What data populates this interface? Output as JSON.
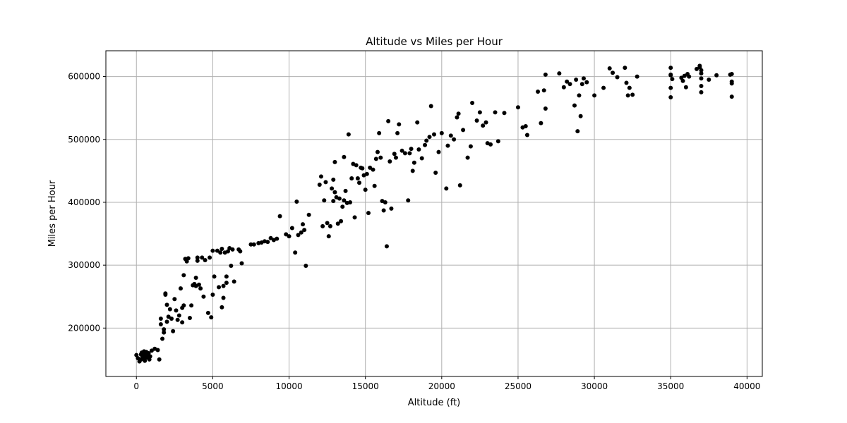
{
  "chart_data": {
    "type": "scatter",
    "title": "Altitude vs Miles per Hour",
    "xlabel": "Altitude (ft)",
    "ylabel": "Miles per Hour",
    "xlim": [
      -2000,
      41000
    ],
    "ylim": [
      123000,
      641000
    ],
    "x_ticks": [
      0,
      5000,
      10000,
      15000,
      20000,
      25000,
      30000,
      35000,
      40000
    ],
    "x_tick_labels": [
      "0",
      "5000",
      "10000",
      "15000",
      "20000",
      "25000",
      "30000",
      "35000",
      "40000"
    ],
    "y_ticks": [
      200000,
      300000,
      400000,
      500000,
      600000
    ],
    "y_tick_labels": [
      "200000",
      "300000",
      "400000",
      "500000",
      "600000"
    ],
    "grid": true,
    "marker_color": "#000000",
    "grid_color": "#b0b0b0",
    "points": [
      [
        0,
        157000
      ],
      [
        100,
        152000
      ],
      [
        200,
        147000
      ],
      [
        300,
        150000
      ],
      [
        300,
        158000
      ],
      [
        350,
        161000
      ],
      [
        400,
        155000
      ],
      [
        450,
        160000
      ],
      [
        500,
        152000
      ],
      [
        500,
        163000
      ],
      [
        550,
        148000
      ],
      [
        600,
        157000
      ],
      [
        650,
        162000
      ],
      [
        700,
        153000
      ],
      [
        750,
        158000
      ],
      [
        800,
        160000
      ],
      [
        850,
        150000
      ],
      [
        900,
        155000
      ],
      [
        1000,
        164000
      ],
      [
        1200,
        167000
      ],
      [
        1400,
        165000
      ],
      [
        1500,
        150000
      ],
      [
        1600,
        206000
      ],
      [
        1600,
        215000
      ],
      [
        1700,
        183000
      ],
      [
        1800,
        198000
      ],
      [
        1800,
        193000
      ],
      [
        1900,
        255000
      ],
      [
        1900,
        253000
      ],
      [
        2000,
        237000
      ],
      [
        2000,
        210000
      ],
      [
        2100,
        218000
      ],
      [
        2200,
        230000
      ],
      [
        2300,
        215000
      ],
      [
        2400,
        195000
      ],
      [
        2500,
        246000
      ],
      [
        2600,
        228000
      ],
      [
        2700,
        213000
      ],
      [
        2800,
        220000
      ],
      [
        2900,
        263000
      ],
      [
        3000,
        209000
      ],
      [
        3000,
        232000
      ],
      [
        3100,
        236000
      ],
      [
        3100,
        284000
      ],
      [
        3200,
        310000
      ],
      [
        3300,
        306000
      ],
      [
        3400,
        311000
      ],
      [
        3500,
        216000
      ],
      [
        3600,
        236000
      ],
      [
        3700,
        268000
      ],
      [
        3800,
        270000
      ],
      [
        3900,
        267000
      ],
      [
        3900,
        280000
      ],
      [
        4000,
        312000
      ],
      [
        4000,
        307000
      ],
      [
        4100,
        269000
      ],
      [
        4200,
        263000
      ],
      [
        4300,
        312000
      ],
      [
        4400,
        250000
      ],
      [
        4500,
        308000
      ],
      [
        4700,
        224000
      ],
      [
        4800,
        312000
      ],
      [
        4900,
        217000
      ],
      [
        5000,
        253000
      ],
      [
        5000,
        323000
      ],
      [
        5100,
        282000
      ],
      [
        5300,
        323000
      ],
      [
        5400,
        265000
      ],
      [
        5500,
        320000
      ],
      [
        5600,
        326000
      ],
      [
        5600,
        233000
      ],
      [
        5700,
        248000
      ],
      [
        5700,
        267000
      ],
      [
        5800,
        320000
      ],
      [
        5900,
        282000
      ],
      [
        5900,
        272000
      ],
      [
        6000,
        322000
      ],
      [
        6100,
        327000
      ],
      [
        6200,
        299000
      ],
      [
        6300,
        325000
      ],
      [
        6400,
        274000
      ],
      [
        6700,
        325000
      ],
      [
        6800,
        322000
      ],
      [
        6900,
        303000
      ],
      [
        7500,
        333000
      ],
      [
        7700,
        333000
      ],
      [
        8000,
        335000
      ],
      [
        8200,
        336000
      ],
      [
        8400,
        338000
      ],
      [
        8600,
        337000
      ],
      [
        8800,
        343000
      ],
      [
        9000,
        340000
      ],
      [
        9200,
        342000
      ],
      [
        9400,
        378000
      ],
      [
        9800,
        349000
      ],
      [
        10000,
        346000
      ],
      [
        10200,
        359000
      ],
      [
        10400,
        320000
      ],
      [
        10500,
        401000
      ],
      [
        10600,
        348000
      ],
      [
        10800,
        352000
      ],
      [
        10900,
        365000
      ],
      [
        11000,
        356000
      ],
      [
        11100,
        299000
      ],
      [
        11300,
        380000
      ],
      [
        12000,
        428000
      ],
      [
        12100,
        441000
      ],
      [
        12200,
        362000
      ],
      [
        12300,
        403000
      ],
      [
        12400,
        432000
      ],
      [
        12500,
        367000
      ],
      [
        12600,
        346000
      ],
      [
        12700,
        362000
      ],
      [
        12800,
        422000
      ],
      [
        12900,
        436000
      ],
      [
        12900,
        402000
      ],
      [
        13000,
        416000
      ],
      [
        13000,
        464000
      ],
      [
        13100,
        408000
      ],
      [
        13200,
        366000
      ],
      [
        13300,
        406000
      ],
      [
        13400,
        370000
      ],
      [
        13500,
        393000
      ],
      [
        13600,
        472000
      ],
      [
        13600,
        403000
      ],
      [
        13700,
        418000
      ],
      [
        13800,
        399000
      ],
      [
        13900,
        508000
      ],
      [
        14000,
        400000
      ],
      [
        14100,
        438000
      ],
      [
        14200,
        461000
      ],
      [
        14300,
        376000
      ],
      [
        14400,
        459000
      ],
      [
        14500,
        438000
      ],
      [
        14600,
        431000
      ],
      [
        14700,
        455000
      ],
      [
        14800,
        454000
      ],
      [
        14900,
        443000
      ],
      [
        15000,
        420000
      ],
      [
        15100,
        445000
      ],
      [
        15200,
        383000
      ],
      [
        15300,
        455000
      ],
      [
        15500,
        452000
      ],
      [
        15600,
        426000
      ],
      [
        15700,
        469000
      ],
      [
        15800,
        480000
      ],
      [
        15900,
        510000
      ],
      [
        16000,
        471000
      ],
      [
        16100,
        402000
      ],
      [
        16200,
        387000
      ],
      [
        16300,
        400000
      ],
      [
        16400,
        330000
      ],
      [
        16500,
        529000
      ],
      [
        16600,
        465000
      ],
      [
        16700,
        390000
      ],
      [
        16900,
        477000
      ],
      [
        17000,
        471000
      ],
      [
        17100,
        510000
      ],
      [
        17200,
        524000
      ],
      [
        17400,
        482000
      ],
      [
        17600,
        478000
      ],
      [
        17800,
        403000
      ],
      [
        17900,
        478000
      ],
      [
        18000,
        485000
      ],
      [
        18100,
        450000
      ],
      [
        18200,
        463000
      ],
      [
        18400,
        527000
      ],
      [
        18500,
        484000
      ],
      [
        18700,
        470000
      ],
      [
        18900,
        491000
      ],
      [
        19000,
        498000
      ],
      [
        19200,
        504000
      ],
      [
        19300,
        553000
      ],
      [
        19500,
        508000
      ],
      [
        19600,
        447000
      ],
      [
        19800,
        480000
      ],
      [
        20000,
        510000
      ],
      [
        20300,
        422000
      ],
      [
        20400,
        490000
      ],
      [
        20600,
        506000
      ],
      [
        20800,
        500000
      ],
      [
        21000,
        535000
      ],
      [
        21100,
        541000
      ],
      [
        21200,
        427000
      ],
      [
        21400,
        515000
      ],
      [
        21700,
        471000
      ],
      [
        21900,
        489000
      ],
      [
        22000,
        558000
      ],
      [
        22300,
        530000
      ],
      [
        22500,
        543000
      ],
      [
        22700,
        522000
      ],
      [
        22900,
        527000
      ],
      [
        23000,
        494000
      ],
      [
        23200,
        492000
      ],
      [
        23500,
        543000
      ],
      [
        23700,
        497000
      ],
      [
        24100,
        542000
      ],
      [
        25000,
        551000
      ],
      [
        25300,
        519000
      ],
      [
        25500,
        521000
      ],
      [
        25600,
        507000
      ],
      [
        26300,
        576000
      ],
      [
        26500,
        526000
      ],
      [
        26700,
        578000
      ],
      [
        26800,
        549000
      ],
      [
        26800,
        603000
      ],
      [
        27700,
        605000
      ],
      [
        28000,
        583000
      ],
      [
        28200,
        592000
      ],
      [
        28400,
        588000
      ],
      [
        28700,
        554000
      ],
      [
        28800,
        595000
      ],
      [
        28900,
        513000
      ],
      [
        29000,
        570000
      ],
      [
        29100,
        537000
      ],
      [
        29200,
        588000
      ],
      [
        29300,
        597000
      ],
      [
        29500,
        591000
      ],
      [
        30000,
        570000
      ],
      [
        30600,
        582000
      ],
      [
        31000,
        613000
      ],
      [
        31200,
        606000
      ],
      [
        31500,
        599000
      ],
      [
        32000,
        614000
      ],
      [
        32100,
        590000
      ],
      [
        32200,
        570000
      ],
      [
        32300,
        582000
      ],
      [
        32500,
        571000
      ],
      [
        32800,
        600000
      ],
      [
        35000,
        567000
      ],
      [
        35000,
        582000
      ],
      [
        35000,
        602000
      ],
      [
        35000,
        614000
      ],
      [
        35000,
        603000
      ],
      [
        35100,
        596000
      ],
      [
        35700,
        598000
      ],
      [
        35800,
        593000
      ],
      [
        35900,
        601000
      ],
      [
        36000,
        583000
      ],
      [
        36100,
        604000
      ],
      [
        36200,
        600000
      ],
      [
        36700,
        612000
      ],
      [
        36900,
        615000
      ],
      [
        36900,
        617000
      ],
      [
        37000,
        605000
      ],
      [
        37000,
        597000
      ],
      [
        37000,
        585000
      ],
      [
        37000,
        575000
      ],
      [
        37000,
        610000
      ],
      [
        37500,
        595000
      ],
      [
        38000,
        602000
      ],
      [
        38900,
        603000
      ],
      [
        39000,
        592000
      ],
      [
        39000,
        568000
      ],
      [
        39000,
        589000
      ],
      [
        39000,
        604000
      ]
    ]
  }
}
